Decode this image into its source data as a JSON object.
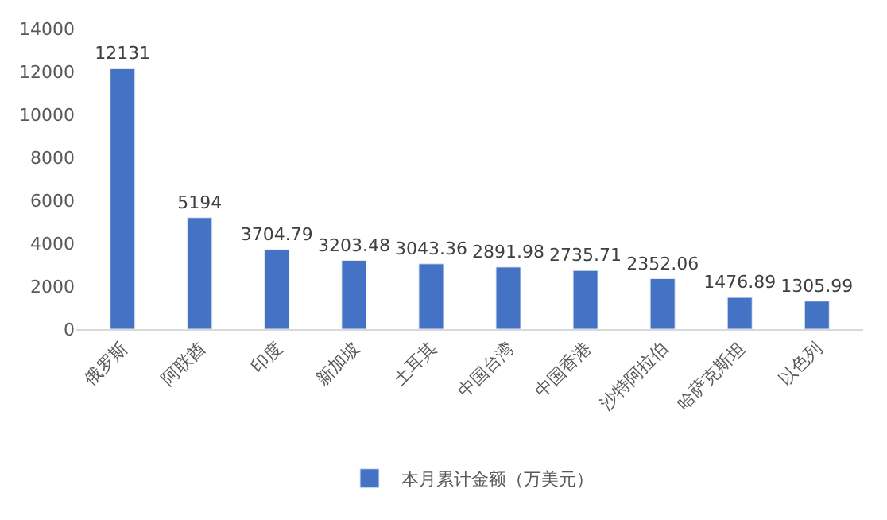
{
  "chart_data": {
    "type": "bar",
    "categories": [
      "俄罗斯",
      "阿联酋",
      "印度",
      "新加坡",
      "土耳其",
      "中国台湾",
      "中国香港",
      "沙特阿拉伯",
      "哈萨克斯坦",
      "以色列"
    ],
    "series": [
      {
        "name": "本月累计金额（万美元）",
        "color": "#4472c4",
        "values": [
          12131,
          5194,
          3704.79,
          3203.48,
          3043.36,
          2891.98,
          2735.71,
          2352.06,
          1476.89,
          1305.99
        ]
      }
    ],
    "ylim": [
      0,
      14000
    ],
    "yticks": [
      0,
      2000,
      4000,
      6000,
      8000,
      10000,
      12000,
      14000
    ],
    "data_labels": true,
    "grid": false,
    "legend": "bottom"
  }
}
